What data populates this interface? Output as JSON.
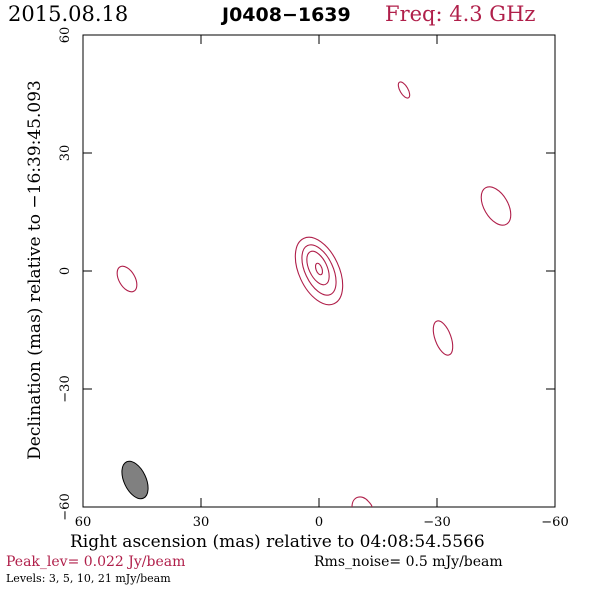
{
  "header": {
    "date": "2015.08.18",
    "source": "J0408−1639",
    "freq": "Freq: 4.3 GHz"
  },
  "axes": {
    "xlabel": "Right ascension (mas) relative to 04:08:54.5566",
    "ylabel": "Declination (mas) relative to −16:39:45.093",
    "xlim": [
      60,
      -60
    ],
    "ylim": [
      -60,
      60
    ],
    "xticks": [
      "60",
      "30",
      "0",
      "−30",
      "−60"
    ],
    "yticks": [
      "60",
      "30",
      "0",
      "−30",
      "−60"
    ]
  },
  "footer": {
    "peak": "Peak_lev=  0.022 Jy/beam",
    "rms": "Rms_noise=  0.5 mJy/beam",
    "levels": "Levels:   3,   5,  10,  21 mJy/beam"
  },
  "colors": {
    "contour": "#b01f4a",
    "beam": "#808080",
    "accent": "#b01f4a"
  },
  "chart_data": {
    "type": "contour",
    "levels_mJy": [
      3,
      5,
      10,
      21
    ],
    "components": [
      {
        "name": "core",
        "x": 0,
        "y": 0,
        "levels_shown": 4
      },
      {
        "name": "blob",
        "x": -22,
        "y": 46,
        "levels_shown": 1
      },
      {
        "name": "blob",
        "x": -46,
        "y": 16,
        "levels_shown": 1
      },
      {
        "name": "blob",
        "x": 48,
        "y": -2,
        "levels_shown": 1
      },
      {
        "name": "blob",
        "x": -32,
        "y": -17,
        "levels_shown": 1
      },
      {
        "name": "blob",
        "x": -11,
        "y": -59,
        "levels_shown": 1
      }
    ],
    "beam": {
      "x": 48,
      "y": -53
    }
  }
}
